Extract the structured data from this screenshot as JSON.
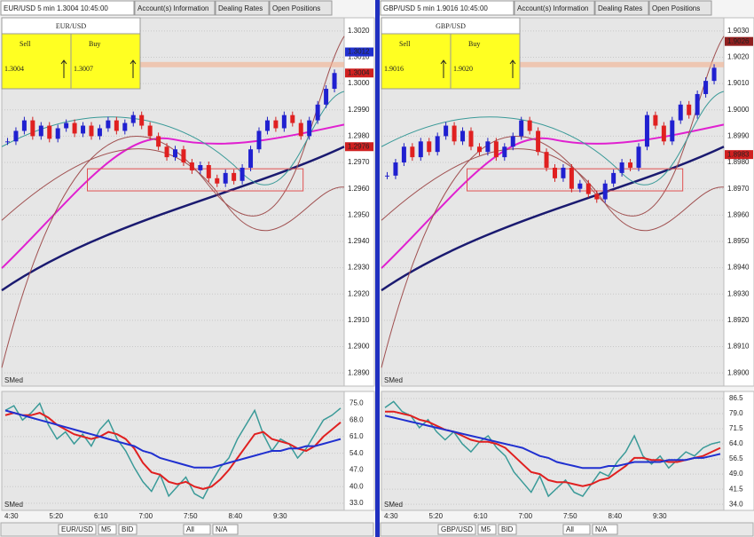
{
  "panels": [
    {
      "tabs": [
        "EUR/USD 5 min 1.3004 10:45:00",
        "Account(s) Information",
        "Dealing Rates",
        "Open Positions"
      ],
      "quote": {
        "pair": "EUR/USD",
        "sell_label": "Sell",
        "buy_label": "Buy",
        "sell": "1.3004",
        "buy": "1.3007"
      },
      "price": {
        "ylim": [
          1.2885,
          1.3025
        ],
        "yticks": [
          {
            "value": 1.302,
            "label": "1.3020"
          },
          {
            "value": 1.301,
            "label": "1.3010"
          },
          {
            "value": 1.3,
            "label": "1.3000"
          },
          {
            "value": 1.299,
            "label": "1.2990"
          },
          {
            "value": 1.298,
            "label": "1.2980"
          },
          {
            "value": 1.297,
            "label": "1.2970"
          },
          {
            "value": 1.296,
            "label": "1.2960"
          },
          {
            "value": 1.295,
            "label": "1.2950"
          },
          {
            "value": 1.294,
            "label": "1.2940"
          },
          {
            "value": 1.293,
            "label": "1.2930"
          },
          {
            "value": 1.292,
            "label": "1.2920"
          },
          {
            "value": 1.291,
            "label": "1.2910"
          },
          {
            "value": 1.29,
            "label": "1.2900"
          },
          {
            "value": 1.289,
            "label": "1.2890"
          }
        ],
        "markers": [
          {
            "value": 1.3012,
            "label": "1.3012",
            "color": "#2030d0"
          },
          {
            "value": 1.3004,
            "label": "1.3004",
            "color": "#d02020"
          },
          {
            "value": 1.2976,
            "label": "1.2976",
            "color": "#d02020"
          }
        ],
        "closes": [
          1.2978,
          1.2982,
          1.2986,
          1.298,
          1.2984,
          1.2979,
          1.2983,
          1.2985,
          1.2981,
          1.2984,
          1.298,
          1.2983,
          1.2986,
          1.2982,
          1.2985,
          1.2988,
          1.2984,
          1.298,
          1.2976,
          1.2972,
          1.2975,
          1.297,
          1.2967,
          1.2969,
          1.2964,
          1.2962,
          1.2966,
          1.2963,
          1.2968,
          1.2975,
          1.2982,
          1.2986,
          1.2983,
          1.2988,
          1.2985,
          1.298,
          1.2986,
          1.2992,
          1.2998,
          1.3004
        ]
      },
      "oscillator": {
        "ylim": [
          30,
          80
        ],
        "yticks": [
          {
            "value": 75,
            "label": "75.0"
          },
          {
            "value": 68,
            "label": "68.0"
          },
          {
            "value": 61,
            "label": "61.0"
          },
          {
            "value": 54,
            "label": "54.0"
          },
          {
            "value": 47,
            "label": "47.0"
          },
          {
            "value": 40,
            "label": "40.0"
          },
          {
            "value": 33,
            "label": "33.0"
          }
        ],
        "series": [
          {
            "color": "#3a9a98",
            "values": [
              72,
              74,
              68,
              71,
              75,
              66,
              60,
              63,
              58,
              62,
              57,
              64,
              68,
              60,
              55,
              48,
              42,
              38,
              45,
              36,
              40,
              44,
              37,
              35,
              42,
              48,
              52,
              60,
              66,
              72,
              62,
              55,
              60,
              58,
              52,
              56,
              62,
              68,
              70,
              73
            ]
          },
          {
            "color": "#e02020",
            "values": [
              70,
              71,
              70,
              70,
              71,
              69,
              66,
              64,
              62,
              61,
              60,
              61,
              63,
              62,
              60,
              56,
              50,
              46,
              45,
              42,
              41,
              42,
              40,
              39,
              40,
              43,
              47,
              52,
              57,
              62,
              63,
              60,
              59,
              58,
              56,
              55,
              57,
              61,
              64,
              67
            ]
          },
          {
            "color": "#2030d0",
            "values": [
              72,
              71,
              70,
              69,
              68,
              67,
              66,
              65,
              64,
              63,
              62,
              61,
              60,
              59,
              58,
              57,
              55,
              54,
              52,
              51,
              50,
              49,
              48,
              48,
              48,
              49,
              50,
              51,
              52,
              53,
              54,
              55,
              55,
              56,
              56,
              57,
              57,
              58,
              59,
              60
            ]
          }
        ]
      },
      "indicator_labels": [
        "SMed",
        "SMed"
      ],
      "times": [
        "4:30",
        "5:20",
        "6:10",
        "7:00",
        "7:50",
        "8:40",
        "9:30"
      ],
      "toolbar": [
        "EUR/USD",
        "M5",
        "BID",
        "All",
        "N/A"
      ]
    },
    {
      "tabs": [
        "GBP/USD 5 min 1.9016 10:45:00",
        "Account(s) Information",
        "Dealing Rates",
        "Open Positions"
      ],
      "quote": {
        "pair": "GBP/USD",
        "sell_label": "Sell",
        "buy_label": "Buy",
        "sell": "1.9016",
        "buy": "1.9020"
      },
      "price": {
        "ylim": [
          1.8895,
          1.9035
        ],
        "yticks": [
          {
            "value": 1.903,
            "label": "1.9030"
          },
          {
            "value": 1.902,
            "label": "1.9020"
          },
          {
            "value": 1.901,
            "label": "1.9010"
          },
          {
            "value": 1.9,
            "label": "1.9000"
          },
          {
            "value": 1.899,
            "label": "1.8990"
          },
          {
            "value": 1.898,
            "label": "1.8980"
          },
          {
            "value": 1.897,
            "label": "1.8970"
          },
          {
            "value": 1.896,
            "label": "1.8960"
          },
          {
            "value": 1.895,
            "label": "1.8950"
          },
          {
            "value": 1.894,
            "label": "1.8940"
          },
          {
            "value": 1.893,
            "label": "1.8930"
          },
          {
            "value": 1.892,
            "label": "1.8920"
          },
          {
            "value": 1.891,
            "label": "1.8910"
          },
          {
            "value": 1.89,
            "label": "1.8900"
          }
        ],
        "markers": [
          {
            "value": 1.9026,
            "label": "1.9026",
            "color": "#902020"
          },
          {
            "value": 1.8983,
            "label": "1.8983",
            "color": "#d02020"
          }
        ],
        "closes": [
          1.8975,
          1.898,
          1.8986,
          1.8982,
          1.8988,
          1.8984,
          1.899,
          1.8994,
          1.8988,
          1.8992,
          1.8986,
          1.8984,
          1.8988,
          1.8982,
          1.8986,
          1.899,
          1.8996,
          1.8992,
          1.8984,
          1.8978,
          1.8974,
          1.8978,
          1.897,
          1.8972,
          1.8968,
          1.8966,
          1.8972,
          1.8976,
          1.898,
          1.8978,
          1.8986,
          1.8998,
          1.8994,
          1.8988,
          1.8996,
          1.9002,
          1.8998,
          1.9006,
          1.9011,
          1.9016
        ]
      },
      "oscillator": {
        "ylim": [
          31,
          90
        ],
        "yticks": [
          {
            "value": 86.5,
            "label": "86.5"
          },
          {
            "value": 79,
            "label": "79.0"
          },
          {
            "value": 71.5,
            "label": "71.5"
          },
          {
            "value": 64,
            "label": "64.0"
          },
          {
            "value": 56.5,
            "label": "56.5"
          },
          {
            "value": 49,
            "label": "49.0"
          },
          {
            "value": 41.5,
            "label": "41.5"
          },
          {
            "value": 34,
            "label": "34.0"
          }
        ],
        "series": [
          {
            "color": "#3a9a98",
            "values": [
              82,
              85,
              80,
              78,
              72,
              76,
              70,
              66,
              70,
              64,
              60,
              65,
              68,
              62,
              58,
              50,
              45,
              40,
              48,
              38,
              42,
              46,
              40,
              38,
              44,
              50,
              48,
              55,
              60,
              68,
              58,
              54,
              58,
              52,
              56,
              60,
              58,
              62,
              64,
              65
            ]
          },
          {
            "color": "#e02020",
            "values": [
              80,
              80,
              79,
              78,
              76,
              75,
              73,
              71,
              70,
              68,
              66,
              65,
              65,
              64,
              62,
              58,
              54,
              50,
              49,
              46,
              45,
              45,
              44,
              43,
              44,
              46,
              47,
              50,
              53,
              57,
              57,
              56,
              56,
              55,
              55,
              56,
              57,
              58,
              60,
              62
            ]
          },
          {
            "color": "#2030d0",
            "values": [
              78,
              77,
              76,
              75,
              74,
              73,
              72,
              71,
              70,
              69,
              68,
              67,
              66,
              65,
              64,
              63,
              62,
              60,
              58,
              57,
              55,
              54,
              53,
              52,
              52,
              52,
              53,
              53,
              54,
              55,
              55,
              55,
              55,
              56,
              56,
              56,
              57,
              57,
              58,
              59
            ]
          }
        ]
      },
      "indicator_labels": [
        "SMed",
        "SMed"
      ],
      "times": [
        "4:30",
        "5:20",
        "6:10",
        "7:00",
        "7:50",
        "8:40",
        "9:30"
      ],
      "toolbar": [
        "GBP/USD",
        "M5",
        "BID",
        "All",
        "N/A"
      ]
    }
  ]
}
